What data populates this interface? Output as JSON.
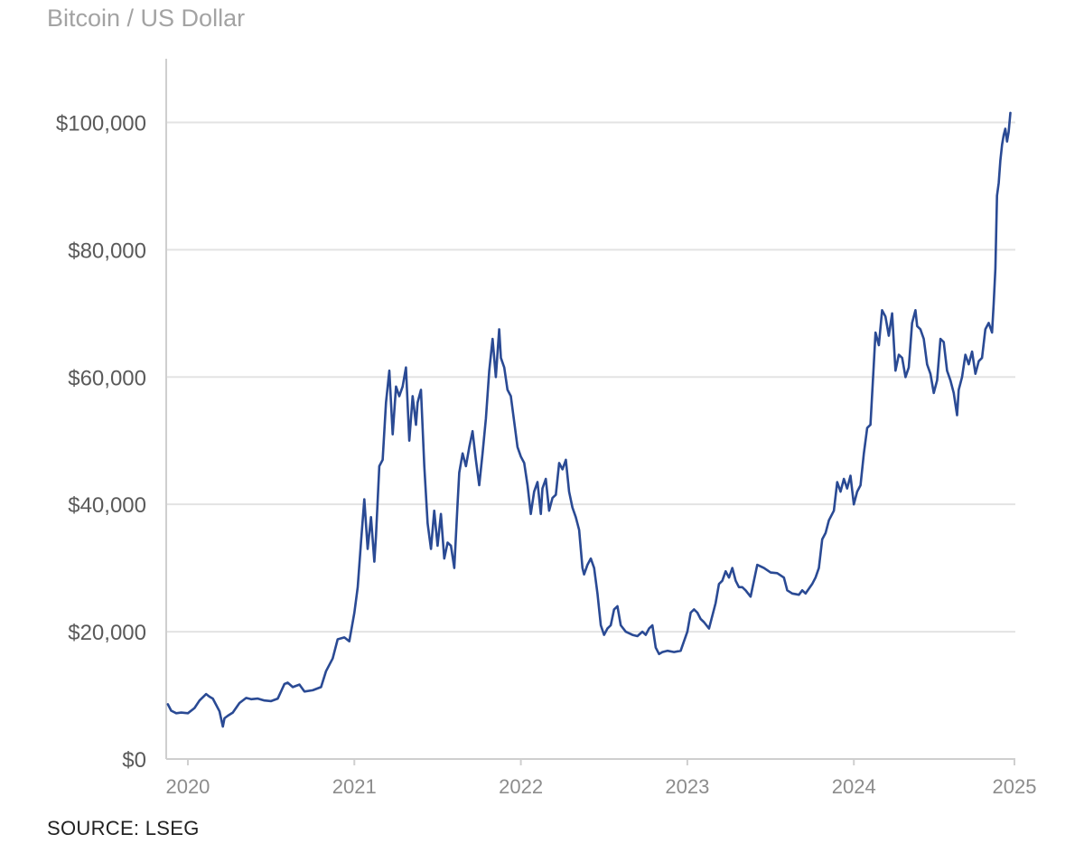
{
  "header": {
    "subtitle": "Bitcoin / US Dollar"
  },
  "footer": {
    "source": "SOURCE: LSEG"
  },
  "colors": {
    "line": "#2a4a94",
    "grid": "#e3e3e3",
    "axis": "#cfcfcf"
  },
  "chart_data": {
    "type": "line",
    "title": "Bitcoin / US Dollar",
    "xlabel": "",
    "ylabel": "",
    "xlim": [
      2019.87,
      2024.97
    ],
    "ylim": [
      0,
      110000
    ],
    "y_ticks": [
      0,
      20000,
      40000,
      60000,
      80000,
      100000
    ],
    "y_tick_labels": [
      "$0",
      "$20,000",
      "$40,000",
      "$60,000",
      "$80,000",
      "$100,000"
    ],
    "x_ticks": [
      2020,
      2021,
      2022,
      2023,
      2024,
      2025
    ],
    "x_tick_labels": [
      "2020",
      "2021",
      "2022",
      "2023",
      "2024",
      "2025"
    ],
    "grid": true,
    "series": [
      {
        "name": "Bitcoin / US Dollar",
        "x": [
          2019.88,
          2019.9,
          2019.93,
          2019.96,
          2020.0,
          2020.04,
          2020.07,
          2020.11,
          2020.13,
          2020.15,
          2020.17,
          2020.19,
          2020.21,
          2020.22,
          2020.24,
          2020.27,
          2020.31,
          2020.35,
          2020.38,
          2020.42,
          2020.46,
          2020.5,
          2020.54,
          2020.58,
          2020.6,
          2020.63,
          2020.67,
          2020.7,
          2020.75,
          2020.8,
          2020.83,
          2020.87,
          2020.9,
          2020.94,
          2020.97,
          2021.0,
          2021.02,
          2021.04,
          2021.06,
          2021.08,
          2021.1,
          2021.12,
          2021.13,
          2021.15,
          2021.17,
          2021.19,
          2021.21,
          2021.23,
          2021.25,
          2021.27,
          2021.29,
          2021.31,
          2021.33,
          2021.35,
          2021.37,
          2021.38,
          2021.4,
          2021.42,
          2021.44,
          2021.46,
          2021.48,
          2021.5,
          2021.52,
          2021.54,
          2021.56,
          2021.58,
          2021.6,
          2021.62,
          2021.63,
          2021.65,
          2021.67,
          2021.69,
          2021.71,
          2021.73,
          2021.75,
          2021.77,
          2021.79,
          2021.81,
          2021.83,
          2021.85,
          2021.87,
          2021.88,
          2021.9,
          2021.92,
          2021.94,
          2021.96,
          2021.98,
          2022.0,
          2022.02,
          2022.04,
          2022.06,
          2022.08,
          2022.1,
          2022.12,
          2022.13,
          2022.15,
          2022.17,
          2022.19,
          2022.21,
          2022.23,
          2022.25,
          2022.27,
          2022.29,
          2022.31,
          2022.33,
          2022.35,
          2022.37,
          2022.38,
          2022.4,
          2022.42,
          2022.44,
          2022.46,
          2022.48,
          2022.5,
          2022.52,
          2022.54,
          2022.56,
          2022.58,
          2022.6,
          2022.63,
          2022.67,
          2022.7,
          2022.73,
          2022.75,
          2022.77,
          2022.79,
          2022.81,
          2022.83,
          2022.85,
          2022.88,
          2022.92,
          2022.96,
          2023.0,
          2023.02,
          2023.04,
          2023.06,
          2023.08,
          2023.1,
          2023.13,
          2023.17,
          2023.19,
          2023.21,
          2023.23,
          2023.25,
          2023.27,
          2023.29,
          2023.31,
          2023.33,
          2023.35,
          2023.38,
          2023.42,
          2023.46,
          2023.5,
          2023.54,
          2023.58,
          2023.6,
          2023.63,
          2023.67,
          2023.69,
          2023.71,
          2023.75,
          2023.77,
          2023.79,
          2023.81,
          2023.83,
          2023.85,
          2023.88,
          2023.9,
          2023.92,
          2023.94,
          2023.96,
          2023.98,
          2024.0,
          2024.02,
          2024.04,
          2024.06,
          2024.08,
          2024.1,
          2024.12,
          2024.13,
          2024.15,
          2024.17,
          2024.19,
          2024.21,
          2024.23,
          2024.25,
          2024.27,
          2024.29,
          2024.31,
          2024.33,
          2024.35,
          2024.37,
          2024.38,
          2024.4,
          2024.42,
          2024.44,
          2024.46,
          2024.48,
          2024.5,
          2024.52,
          2024.54,
          2024.56,
          2024.58,
          2024.6,
          2024.62,
          2024.63,
          2024.65,
          2024.67,
          2024.69,
          2024.71,
          2024.73,
          2024.75,
          2024.77,
          2024.79,
          2024.81,
          2024.83,
          2024.84,
          2024.85,
          2024.86,
          2024.87,
          2024.88,
          2024.89,
          2024.9,
          2024.91,
          2024.92,
          2024.93,
          2024.94
        ],
        "values": [
          8600,
          7600,
          7200,
          7300,
          7200,
          8000,
          9200,
          10200,
          9800,
          9500,
          8500,
          7500,
          5100,
          6400,
          6800,
          7300,
          8800,
          9600,
          9400,
          9500,
          9200,
          9100,
          9500,
          11800,
          12000,
          11300,
          11700,
          10600,
          10800,
          11300,
          13800,
          15800,
          18800,
          19100,
          18500,
          23000,
          27000,
          34000,
          40800,
          33000,
          38000,
          31000,
          35000,
          46000,
          47000,
          56000,
          61000,
          51000,
          58500,
          57000,
          58500,
          61500,
          50000,
          57000,
          52500,
          56000,
          58000,
          46000,
          37000,
          33000,
          39000,
          33500,
          38500,
          31500,
          34000,
          33500,
          30000,
          40000,
          45000,
          48000,
          46000,
          49000,
          51500,
          47000,
          43000,
          48000,
          53500,
          61000,
          66000,
          60000,
          67500,
          63000,
          61500,
          58000,
          57000,
          53000,
          49000,
          47500,
          46500,
          43000,
          38500,
          42000,
          43500,
          38500,
          42500,
          44000,
          39000,
          41000,
          41500,
          46500,
          45500,
          47000,
          42000,
          39500,
          38000,
          36000,
          30000,
          29000,
          30500,
          31500,
          30000,
          26000,
          21000,
          19500,
          20500,
          21000,
          23500,
          24000,
          21000,
          20000,
          19500,
          19300,
          20000,
          19500,
          20500,
          21000,
          17500,
          16500,
          16800,
          17000,
          16800,
          17000,
          20000,
          23000,
          23500,
          23000,
          22000,
          21500,
          20500,
          24500,
          27500,
          28000,
          29500,
          28500,
          30000,
          28000,
          27000,
          27000,
          26500,
          25500,
          30500,
          30000,
          29300,
          29200,
          28500,
          26500,
          26000,
          25800,
          26500,
          26000,
          27500,
          28500,
          30000,
          34500,
          35500,
          37500,
          39000,
          43500,
          42000,
          44000,
          42500,
          44500,
          40000,
          42000,
          43000,
          48000,
          52000,
          52500,
          62000,
          67000,
          65000,
          70500,
          69500,
          66500,
          70000,
          61000,
          63500,
          63000,
          60000,
          61500,
          68500,
          70500,
          68000,
          67500,
          66000,
          62000,
          60500,
          57500,
          59500,
          66000,
          65500,
          61000,
          59500,
          57500,
          54000,
          58000,
          60000,
          63500,
          62000,
          64000,
          60500,
          62500,
          63000,
          67500,
          68500,
          67000,
          71500,
          77000,
          88500,
          90500,
          94000,
          96500,
          98000,
          99000,
          97000,
          98500,
          101500
        ]
      }
    ]
  }
}
